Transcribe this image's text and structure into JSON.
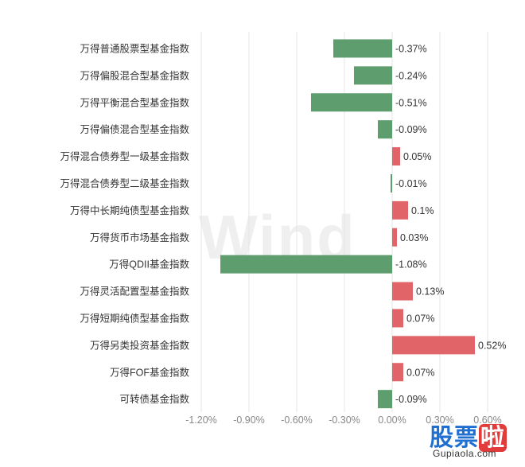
{
  "watermark": "Wind",
  "chart_data": {
    "type": "bar",
    "orientation": "horizontal",
    "categories": [
      "万得普通股票型基金指数",
      "万得偏股混合型基金指数",
      "万得平衡混合型基金指数",
      "万得偏债混合型基金指数",
      "万得混合债券型一级基金指数",
      "万得混合债券型二级基金指数",
      "万得中长期纯债型基金指数",
      "万得货币市场基金指数",
      "万得QDII基金指数",
      "万得灵活配置型基金指数",
      "万得短期纯债型基金指数",
      "万得另类投资基金指数",
      "万得FOF基金指数",
      "可转债基金指数"
    ],
    "values": [
      -0.37,
      -0.24,
      -0.51,
      -0.09,
      0.05,
      -0.01,
      0.1,
      0.03,
      -1.08,
      0.13,
      0.07,
      0.52,
      0.07,
      -0.09
    ],
    "value_labels": [
      "-0.37%",
      "-0.24%",
      "-0.51%",
      "-0.09%",
      "0.05%",
      "-0.01%",
      "0.1%",
      "0.03%",
      "-1.08%",
      "0.13%",
      "0.07%",
      "0.52%",
      "0.07%",
      "-0.09%"
    ],
    "xticks": [
      -1.2,
      -0.9,
      -0.6,
      -0.3,
      0,
      0.3,
      0.6
    ],
    "xtick_labels": [
      "-1.20%",
      "-0.90%",
      "-0.60%",
      "-0.30%",
      "0.00%",
      "0.30%",
      "0.60%"
    ],
    "xlim": [
      -1.2,
      0.6
    ],
    "grid": "vertical",
    "colors": {
      "positive": "#e06468",
      "negative": "#5e9e6e",
      "grid": "#e6e6e6",
      "text": "#333333",
      "tick": "#888888"
    }
  },
  "logo": {
    "chars": [
      "股",
      "票",
      "啦"
    ],
    "subtitle": "Gupiaola.com"
  }
}
